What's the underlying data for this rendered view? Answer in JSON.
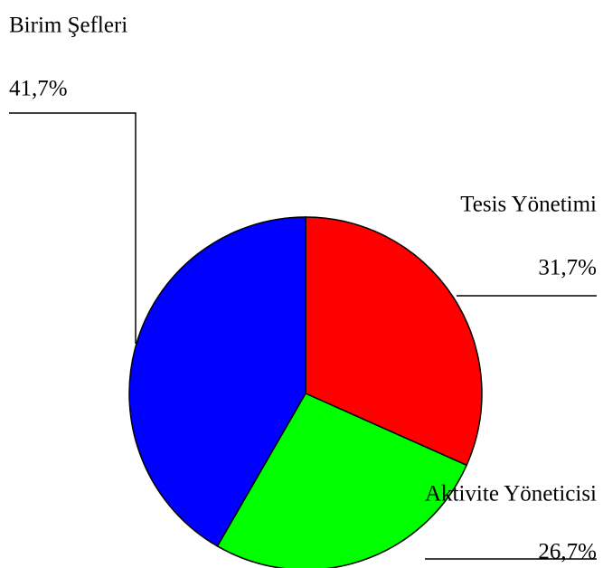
{
  "chart_data": {
    "type": "pie",
    "categories": [
      "Tesis Yönetimi",
      "Aktivite Yöneticisi",
      "Birim Şefleri"
    ],
    "values": [
      31.7,
      26.7,
      41.7
    ],
    "value_labels": [
      "31,7%",
      "26,7%",
      "41,7%"
    ],
    "colors": [
      "#ff0000",
      "#00ff00",
      "#0000ff"
    ]
  }
}
